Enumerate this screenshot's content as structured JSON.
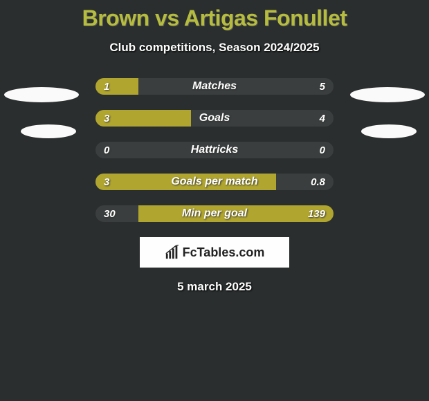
{
  "title": "Brown vs Artigas Fonullet",
  "subtitle": "Club competitions, Season 2024/2025",
  "title_color": "#b6bc3e",
  "background_color": "#2a2e2e",
  "bar_fill_color": "#b0a52e",
  "bar_track_color": "#3a3e3e",
  "text_color": "#fefefe",
  "logo_bg": "#fefefe",
  "logo_text": "FcTables.com",
  "date_text": "5 march 2025",
  "bars": [
    {
      "label": "Matches",
      "left_val": "1",
      "right_val": "5",
      "left_pct": 18,
      "right_pct": 0
    },
    {
      "label": "Goals",
      "left_val": "3",
      "right_val": "4",
      "left_pct": 40,
      "right_pct": 0
    },
    {
      "label": "Hattricks",
      "left_val": "0",
      "right_val": "0",
      "left_pct": 0,
      "right_pct": 0
    },
    {
      "label": "Goals per match",
      "left_val": "3",
      "right_val": "0.8",
      "left_pct": 76,
      "right_pct": 0
    },
    {
      "label": "Min per goal",
      "left_val": "30",
      "right_val": "139",
      "left_pct": 0,
      "right_pct": 82
    }
  ]
}
